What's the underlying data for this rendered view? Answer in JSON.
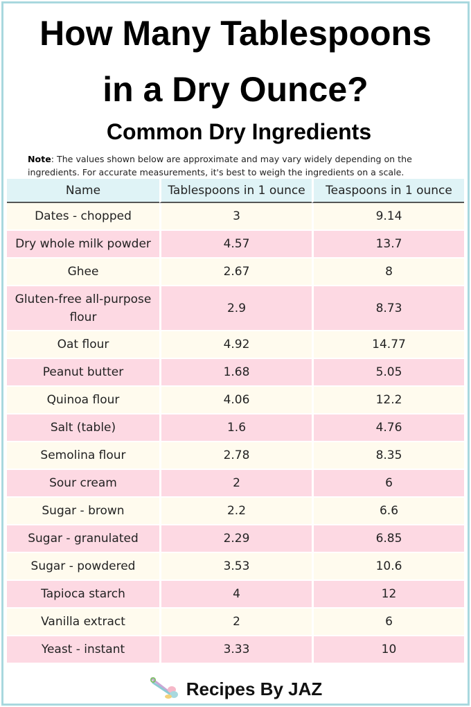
{
  "header": {
    "title_line1": "How Many Tablespoons",
    "title_line2": "in a Dry Ounce?",
    "subtitle": "Common Dry Ingredients"
  },
  "note": {
    "label": "Note",
    "text": ": The values shown below are approximate and may vary widely depending on the ingredients. For accurate measurements, it's best to weigh the ingredients on a scale."
  },
  "table": {
    "columns": [
      "Name",
      "Tablespoons in 1 ounce",
      "Teaspoons in 1 ounce"
    ],
    "rows": [
      [
        "Dates - chopped",
        "3",
        "9.14"
      ],
      [
        "Dry whole milk powder",
        "4.57",
        "13.7"
      ],
      [
        "Ghee",
        "2.67",
        "8"
      ],
      [
        "Gluten-free all-purpose flour",
        "2.9",
        "8.73"
      ],
      [
        "Oat flour",
        "4.92",
        "14.77"
      ],
      [
        "Peanut butter",
        "1.68",
        "5.05"
      ],
      [
        "Quinoa flour",
        "4.06",
        "12.2"
      ],
      [
        "Salt (table)",
        "1.6",
        "4.76"
      ],
      [
        "Semolina flour",
        "2.78",
        "8.35"
      ],
      [
        "Sour cream",
        "2",
        "6"
      ],
      [
        "Sugar - brown",
        "2.2",
        "6.6"
      ],
      [
        "Sugar - granulated",
        "2.29",
        "6.85"
      ],
      [
        "Sugar - powdered",
        "3.53",
        "10.6"
      ],
      [
        "Tapioca starch",
        "4",
        "12"
      ],
      [
        "Vanilla extract",
        "2",
        "6"
      ],
      [
        "Yeast - instant",
        "3.33",
        "10"
      ]
    ]
  },
  "footer": {
    "brand": "Recipes By JAZ",
    "logo_icon": "measuring-spoons-icon"
  },
  "colors": {
    "border": "#a8d8de",
    "header_bg": "#dff3f6",
    "row_cream": "#fffbee",
    "row_pink": "#fdd9e3"
  }
}
